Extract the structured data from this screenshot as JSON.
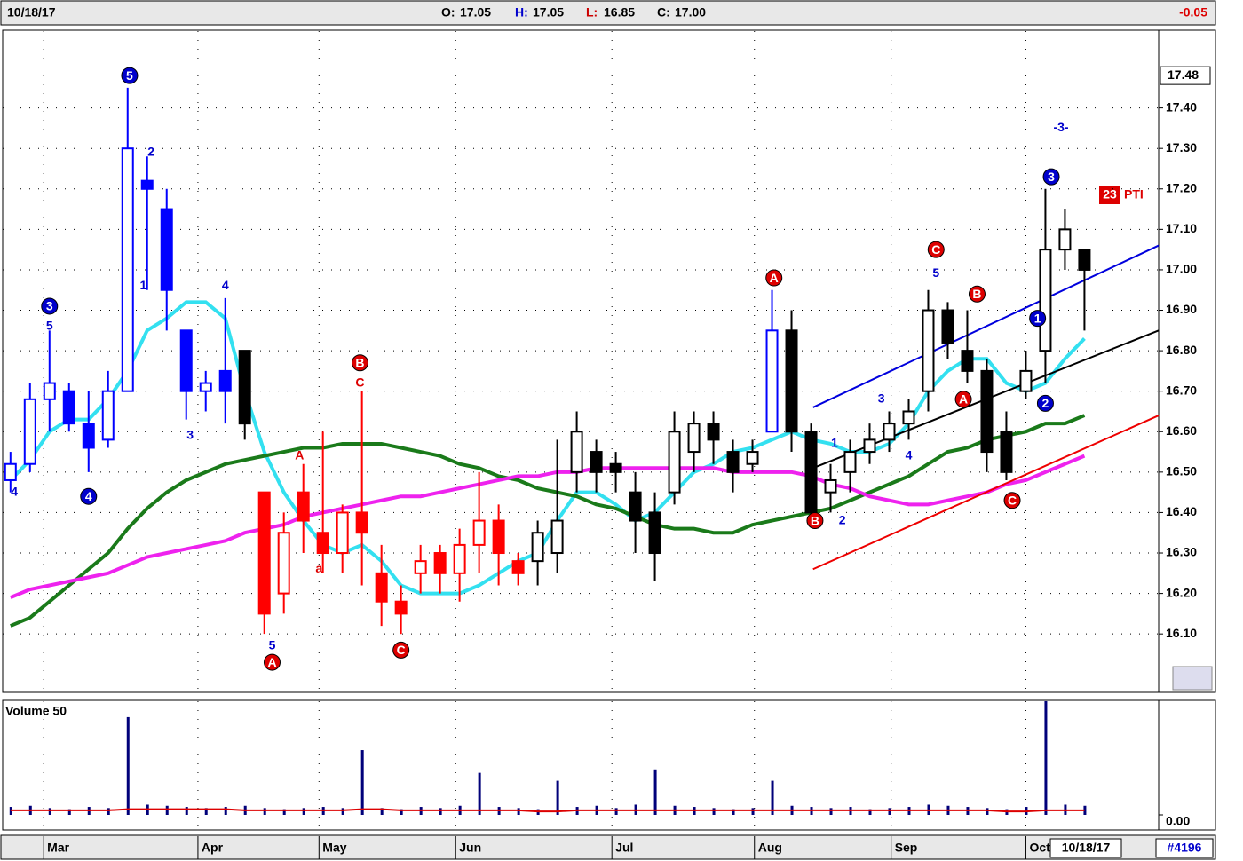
{
  "header": {
    "date": "10/18/17",
    "open_label": "O:",
    "open": "17.05",
    "high_label": "H:",
    "high": "17.05",
    "low_label": "L:",
    "low": "16.85",
    "close_label": "C:",
    "close": "17.00",
    "change": "-0.05"
  },
  "chart_data": {
    "type": "candlestick",
    "x": [
      0,
      1,
      2,
      3,
      4,
      5,
      6,
      7,
      8,
      9,
      10,
      11,
      12,
      13,
      14,
      15,
      16,
      17,
      18,
      19,
      20,
      21,
      22,
      23,
      24,
      25,
      26,
      27,
      28,
      29,
      30,
      31,
      32,
      33,
      34,
      35,
      36,
      37,
      38,
      39,
      40,
      41,
      42,
      43,
      44,
      45,
      46,
      47,
      48,
      49,
      50,
      51,
      52,
      53,
      54,
      55
    ],
    "open": [
      16.48,
      16.52,
      16.68,
      16.7,
      16.62,
      16.58,
      16.7,
      17.22,
      17.15,
      16.85,
      16.7,
      16.75,
      16.8,
      16.45,
      16.2,
      16.45,
      16.35,
      16.3,
      16.4,
      16.25,
      16.18,
      16.25,
      16.3,
      16.25,
      16.32,
      16.38,
      16.28,
      16.28,
      16.3,
      16.5,
      16.55,
      16.52,
      16.45,
      16.4,
      16.45,
      16.55,
      16.62,
      16.55,
      16.52,
      16.6,
      16.85,
      16.6,
      16.45,
      16.5,
      16.55,
      16.58,
      16.62,
      16.7,
      16.9,
      16.8,
      16.75,
      16.6,
      16.7,
      16.8,
      17.05,
      17.05
    ],
    "high": [
      16.55,
      16.72,
      16.85,
      16.72,
      16.7,
      16.75,
      17.45,
      17.28,
      17.2,
      16.85,
      16.75,
      16.93,
      16.8,
      16.45,
      16.4,
      16.52,
      16.6,
      16.42,
      16.7,
      16.32,
      16.22,
      16.32,
      16.32,
      16.36,
      16.5,
      16.42,
      16.3,
      16.38,
      16.58,
      16.65,
      16.58,
      16.55,
      16.5,
      16.45,
      16.65,
      16.65,
      16.65,
      16.58,
      16.58,
      16.95,
      16.9,
      16.62,
      16.52,
      16.58,
      16.62,
      16.65,
      16.68,
      16.95,
      16.92,
      16.9,
      16.78,
      16.65,
      16.8,
      17.2,
      17.15,
      17.05
    ],
    "low": [
      16.45,
      16.5,
      16.6,
      16.6,
      16.5,
      16.56,
      16.7,
      16.95,
      16.85,
      16.63,
      16.65,
      16.62,
      16.58,
      16.1,
      16.15,
      16.3,
      16.25,
      16.25,
      16.22,
      16.12,
      16.1,
      16.2,
      16.2,
      16.18,
      16.25,
      16.22,
      16.22,
      16.22,
      16.25,
      16.45,
      16.45,
      16.45,
      16.3,
      16.23,
      16.42,
      16.5,
      16.52,
      16.45,
      16.5,
      16.6,
      16.55,
      16.38,
      16.4,
      16.45,
      16.52,
      16.55,
      16.58,
      16.65,
      16.78,
      16.72,
      16.5,
      16.48,
      16.68,
      16.72,
      17.0,
      16.85
    ],
    "close": [
      16.52,
      16.68,
      16.72,
      16.62,
      16.56,
      16.7,
      17.3,
      17.2,
      16.95,
      16.7,
      16.72,
      16.7,
      16.62,
      16.15,
      16.35,
      16.38,
      16.3,
      16.4,
      16.35,
      16.18,
      16.15,
      16.28,
      16.25,
      16.32,
      16.38,
      16.3,
      16.25,
      16.35,
      16.38,
      16.6,
      16.5,
      16.5,
      16.38,
      16.3,
      16.6,
      16.62,
      16.58,
      16.5,
      16.55,
      16.85,
      16.6,
      16.4,
      16.48,
      16.55,
      16.58,
      16.62,
      16.65,
      16.9,
      16.82,
      16.75,
      16.55,
      16.5,
      16.75,
      17.05,
      17.1,
      17.0
    ],
    "bar_colors": [
      "#0000ff",
      "#0000ff",
      "#0000ff",
      "#0000ff",
      "#0000ff",
      "#0000ff",
      "#0000ff",
      "#0000ff",
      "#0000ff",
      "#0000ff",
      "#0000ff",
      "#0000ff",
      "#000000",
      "#ff0000",
      "#ff0000",
      "#ff0000",
      "#ff0000",
      "#ff0000",
      "#ff0000",
      "#ff0000",
      "#ff0000",
      "#ff0000",
      "#ff0000",
      "#ff0000",
      "#ff0000",
      "#ff0000",
      "#ff0000",
      "#000000",
      "#000000",
      "#000000",
      "#000000",
      "#000000",
      "#000000",
      "#000000",
      "#000000",
      "#000000",
      "#000000",
      "#000000",
      "#000000",
      "#0000ff",
      "#000000",
      "#000000",
      "#000000",
      "#000000",
      "#000000",
      "#000000",
      "#000000",
      "#000000",
      "#000000",
      "#000000",
      "#000000",
      "#000000",
      "#000000",
      "#000000",
      "#000000",
      "#000000"
    ],
    "series": [
      {
        "color": "#33e0f0",
        "values": [
          16.48,
          16.53,
          16.6,
          16.63,
          16.63,
          16.68,
          16.75,
          16.85,
          16.88,
          16.92,
          16.92,
          16.88,
          16.7,
          16.55,
          16.45,
          16.38,
          16.32,
          16.3,
          16.32,
          16.28,
          16.22,
          16.2,
          16.2,
          16.2,
          16.22,
          16.25,
          16.28,
          16.3,
          16.38,
          16.45,
          16.45,
          16.42,
          16.38,
          16.4,
          16.45,
          16.5,
          16.52,
          16.55,
          16.56,
          16.58,
          16.6,
          16.58,
          16.57,
          16.55,
          16.55,
          16.57,
          16.62,
          16.7,
          16.75,
          16.78,
          16.78,
          16.72,
          16.7,
          16.72,
          16.78,
          16.83
        ]
      },
      {
        "color": "#1a7a1a",
        "values": [
          16.12,
          16.14,
          16.18,
          16.22,
          16.26,
          16.3,
          16.36,
          16.41,
          16.45,
          16.48,
          16.5,
          16.52,
          16.53,
          16.54,
          16.55,
          16.56,
          16.56,
          16.57,
          16.57,
          16.57,
          16.56,
          16.55,
          16.54,
          16.52,
          16.51,
          16.49,
          16.48,
          16.46,
          16.45,
          16.44,
          16.42,
          16.41,
          16.39,
          16.37,
          16.36,
          16.36,
          16.35,
          16.35,
          16.37,
          16.38,
          16.39,
          16.4,
          16.41,
          16.43,
          16.45,
          16.47,
          16.49,
          16.52,
          16.55,
          16.56,
          16.58,
          16.59,
          16.6,
          16.62,
          16.62,
          16.64
        ]
      },
      {
        "color": "#ee22ee",
        "values": [
          16.19,
          16.21,
          16.22,
          16.23,
          16.24,
          16.25,
          16.27,
          16.29,
          16.3,
          16.31,
          16.32,
          16.33,
          16.35,
          16.36,
          16.37,
          16.39,
          16.4,
          16.41,
          16.42,
          16.43,
          16.44,
          16.44,
          16.45,
          16.46,
          16.47,
          16.48,
          16.49,
          16.49,
          16.5,
          16.5,
          16.51,
          16.51,
          16.51,
          16.51,
          16.51,
          16.51,
          16.51,
          16.5,
          16.5,
          16.5,
          16.5,
          16.49,
          16.47,
          16.46,
          16.44,
          16.43,
          16.42,
          16.42,
          16.43,
          16.44,
          16.45,
          16.47,
          16.48,
          16.5,
          16.52,
          16.54
        ]
      }
    ],
    "trend_lines": [
      {
        "color": "#0000dd",
        "x": [
          41.1,
          58.8
        ],
        "y": [
          16.66,
          17.06
        ]
      },
      {
        "color": "#000000",
        "x": [
          41.1,
          58.8
        ],
        "y": [
          16.51,
          16.85
        ]
      },
      {
        "color": "#ee0000",
        "x": [
          41.1,
          58.8
        ],
        "y": [
          16.26,
          16.64
        ]
      }
    ],
    "annotations": [
      {
        "text": "5",
        "circled": true,
        "color": "#0000cc",
        "x": 6.1,
        "y": 17.48
      },
      {
        "text": "3",
        "circled": true,
        "color": "#0000cc",
        "x": 2.0,
        "y": 16.91
      },
      {
        "text": "4",
        "circled": true,
        "color": "#0000cc",
        "x": 4.0,
        "y": 16.44
      },
      {
        "text": "A",
        "circled": true,
        "color": "#dd0000",
        "x": 13.4,
        "y": 16.03
      },
      {
        "text": "C",
        "circled": true,
        "color": "#dd0000",
        "x": 20.0,
        "y": 16.06
      },
      {
        "text": "B",
        "circled": true,
        "color": "#dd0000",
        "x": 17.9,
        "y": 16.77
      },
      {
        "text": "A",
        "circled": true,
        "color": "#dd0000",
        "x": 39.1,
        "y": 16.98
      },
      {
        "text": "B",
        "circled": true,
        "color": "#dd0000",
        "x": 41.2,
        "y": 16.38
      },
      {
        "text": "C",
        "circled": true,
        "color": "#dd0000",
        "x": 47.4,
        "y": 17.05
      },
      {
        "text": "B",
        "circled": true,
        "color": "#dd0000",
        "x": 49.5,
        "y": 16.94
      },
      {
        "text": "A",
        "circled": true,
        "color": "#dd0000",
        "x": 48.8,
        "y": 16.68
      },
      {
        "text": "C",
        "circled": true,
        "color": "#dd0000",
        "x": 51.3,
        "y": 16.43
      },
      {
        "text": "1",
        "circled": true,
        "color": "#0000cc",
        "x": 52.6,
        "y": 16.88
      },
      {
        "text": "2",
        "circled": true,
        "color": "#0000cc",
        "x": 53.0,
        "y": 16.67
      },
      {
        "text": "3",
        "circled": true,
        "color": "#0000cc",
        "x": 53.3,
        "y": 17.23
      },
      {
        "text": "4",
        "circled": false,
        "color": "#0000cc",
        "x": 0.2,
        "y": 16.45
      },
      {
        "text": "5",
        "circled": false,
        "color": "#0000cc",
        "x": 2.0,
        "y": 16.86
      },
      {
        "text": "2",
        "circled": false,
        "color": "#0000cc",
        "x": 7.2,
        "y": 17.29
      },
      {
        "text": "1",
        "circled": false,
        "color": "#0000cc",
        "x": 6.8,
        "y": 16.96
      },
      {
        "text": "3",
        "circled": false,
        "color": "#0000cc",
        "x": 9.2,
        "y": 16.59
      },
      {
        "text": "4",
        "circled": false,
        "color": "#0000cc",
        "x": 11.0,
        "y": 16.96
      },
      {
        "text": "5",
        "circled": false,
        "color": "#0000cc",
        "x": 13.4,
        "y": 16.07
      },
      {
        "text": "A",
        "circled": false,
        "color": "#dd0000",
        "x": 14.8,
        "y": 16.54
      },
      {
        "text": "a",
        "circled": false,
        "color": "#dd0000",
        "x": 15.8,
        "y": 16.26
      },
      {
        "text": "C",
        "circled": false,
        "color": "#dd0000",
        "x": 17.9,
        "y": 16.72
      },
      {
        "text": "1",
        "circled": false,
        "color": "#0000cc",
        "x": 42.2,
        "y": 16.57
      },
      {
        "text": "2",
        "circled": false,
        "color": "#0000cc",
        "x": 42.6,
        "y": 16.38
      },
      {
        "text": "3",
        "circled": false,
        "color": "#0000cc",
        "x": 44.6,
        "y": 16.68
      },
      {
        "text": "4",
        "circled": false,
        "color": "#0000cc",
        "x": 46.0,
        "y": 16.54
      },
      {
        "text": "5",
        "circled": false,
        "color": "#0000cc",
        "x": 47.4,
        "y": 16.99
      },
      {
        "text": "-3-",
        "circled": false,
        "color": "#0000cc",
        "x": 53.8,
        "y": 17.35
      }
    ],
    "xlim": [
      -0.4,
      58.8
    ],
    "ylim": [
      15.96,
      17.59
    ],
    "yticks": [
      {
        "value": 16.1,
        "label": "16.10"
      },
      {
        "value": 16.2,
        "label": "16.20"
      },
      {
        "value": 16.3,
        "label": "16.30"
      },
      {
        "value": 16.4,
        "label": "16.40"
      },
      {
        "value": 16.5,
        "label": "16.50"
      },
      {
        "value": 16.6,
        "label": "16.60"
      },
      {
        "value": 16.7,
        "label": "16.70"
      },
      {
        "value": 16.8,
        "label": "16.80"
      },
      {
        "value": 16.9,
        "label": "16.90"
      },
      {
        "value": 17.0,
        "label": "17.00"
      },
      {
        "value": 17.1,
        "label": "17.10"
      },
      {
        "value": 17.2,
        "label": "17.20"
      },
      {
        "value": 17.3,
        "label": "17.30"
      },
      {
        "value": 17.4,
        "label": "17.40"
      }
    ],
    "xticks": [
      {
        "value": 1.7,
        "label": "Mar"
      },
      {
        "value": 9.6,
        "label": "Apr"
      },
      {
        "value": 15.8,
        "label": "May"
      },
      {
        "value": 22.8,
        "label": "Jun"
      },
      {
        "value": 30.8,
        "label": "Jul"
      },
      {
        "value": 38.1,
        "label": "Aug"
      },
      {
        "value": 45.1,
        "label": "Sep"
      },
      {
        "value": 52.0,
        "label": "Oct"
      }
    ],
    "price_marker": 17.48,
    "indicator": {
      "badge": "23",
      "label": "PTI"
    },
    "grid": true,
    "volume": {
      "title": "Volume 50",
      "bar_color": "#00007a",
      "avg_color": "#dd0000",
      "values": [
        7,
        8,
        6,
        5,
        7,
        6,
        86,
        9,
        8,
        7,
        6,
        7,
        8,
        6,
        5,
        6,
        7,
        6,
        57,
        6,
        5,
        7,
        6,
        8,
        37,
        7,
        6,
        5,
        30,
        7,
        8,
        6,
        9,
        40,
        8,
        7,
        6,
        5,
        6,
        30,
        8,
        7,
        6,
        7,
        5,
        6,
        7,
        9,
        8,
        7,
        6,
        5,
        7,
        100,
        9,
        8
      ],
      "avg": [
        4,
        4,
        4,
        4,
        4,
        4,
        5,
        5,
        5,
        5,
        5,
        5,
        4,
        4,
        4,
        4,
        4,
        4,
        5,
        5,
        4,
        4,
        4,
        4,
        4,
        4,
        4,
        3,
        3,
        4,
        4,
        4,
        4,
        4,
        4,
        4,
        4,
        4,
        4,
        4,
        4,
        4,
        4,
        4,
        4,
        4,
        4,
        4,
        4,
        4,
        4,
        3,
        3,
        4,
        4,
        4
      ],
      "ylim": [
        0,
        100
      ],
      "yticks": [
        {
          "value": 0,
          "label": "0.00"
        }
      ]
    }
  },
  "footer": {
    "date": "10/18/17",
    "id": "#4196"
  }
}
